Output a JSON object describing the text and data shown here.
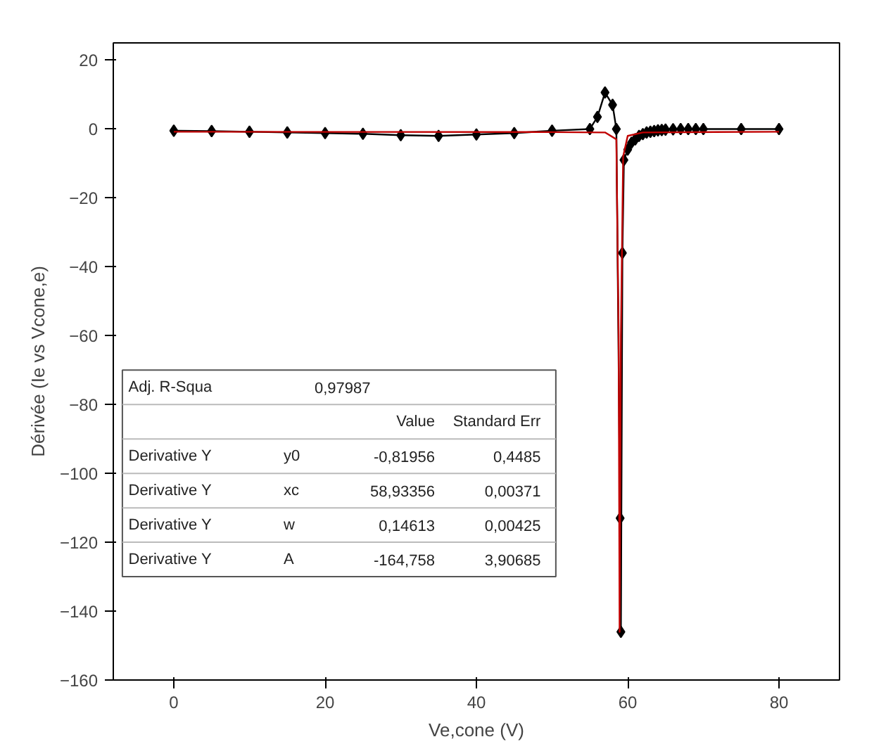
{
  "chart_data": {
    "type": "line",
    "xlabel": "Ve,cone (V)",
    "ylabel": "Dérivée (Ie vs Vcone,e)",
    "xlim": [
      -8,
      88
    ],
    "ylim": [
      -160,
      25
    ],
    "xticks": [
      0,
      20,
      40,
      60,
      80
    ],
    "yticks": [
      20,
      0,
      -20,
      -40,
      -60,
      -80,
      -100,
      -120,
      -140,
      -160
    ],
    "marker": "diamond",
    "grid": false,
    "series": [
      {
        "color": "#000000",
        "x": [
          0,
          5,
          10,
          15,
          20,
          25,
          30,
          35,
          40,
          45,
          50,
          55,
          56,
          57,
          58,
          58.5,
          59,
          59.1,
          59.3,
          59.5,
          60,
          60.5,
          61,
          61.5,
          62,
          62.5,
          63,
          63.5,
          64,
          64.5,
          65,
          66,
          67,
          68,
          69,
          70,
          75,
          80
        ],
        "values": [
          -0.5,
          -0.6,
          -0.8,
          -1,
          -1.2,
          -1.4,
          -1.8,
          -2,
          -1.6,
          -1.2,
          -0.5,
          0,
          3.5,
          10.6,
          7,
          0,
          -113,
          -146,
          -36,
          -9,
          -6,
          -4,
          -3,
          -2,
          -1.5,
          -1,
          -0.8,
          -0.6,
          -0.4,
          -0.3,
          -0.2,
          -0.1,
          0,
          0,
          0,
          0,
          0,
          0
        ]
      },
      {
        "type": "line",
        "marker": "none",
        "color": "#c00000",
        "x": [
          0,
          50,
          57,
          58.5,
          58.8,
          58.93,
          59.1,
          59.4,
          60,
          62,
          80
        ],
        "values": [
          -0.8,
          -0.9,
          -1,
          -3,
          -60,
          -146,
          -60,
          -8,
          -2,
          -1,
          -0.8
        ]
      }
    ],
    "annotations": [
      "Adj. R-Squa",
      "0,97987",
      "Value",
      "Standard Err",
      "Derivative Y",
      "y0",
      "-0,81956",
      "0,4485",
      "Derivative Y",
      "xc",
      "58,93356",
      "0,00371",
      "Derivative Y",
      "w",
      "0,14613",
      "0,00425",
      "Derivative Y",
      "A",
      "-164,758",
      "3,90685"
    ]
  }
}
